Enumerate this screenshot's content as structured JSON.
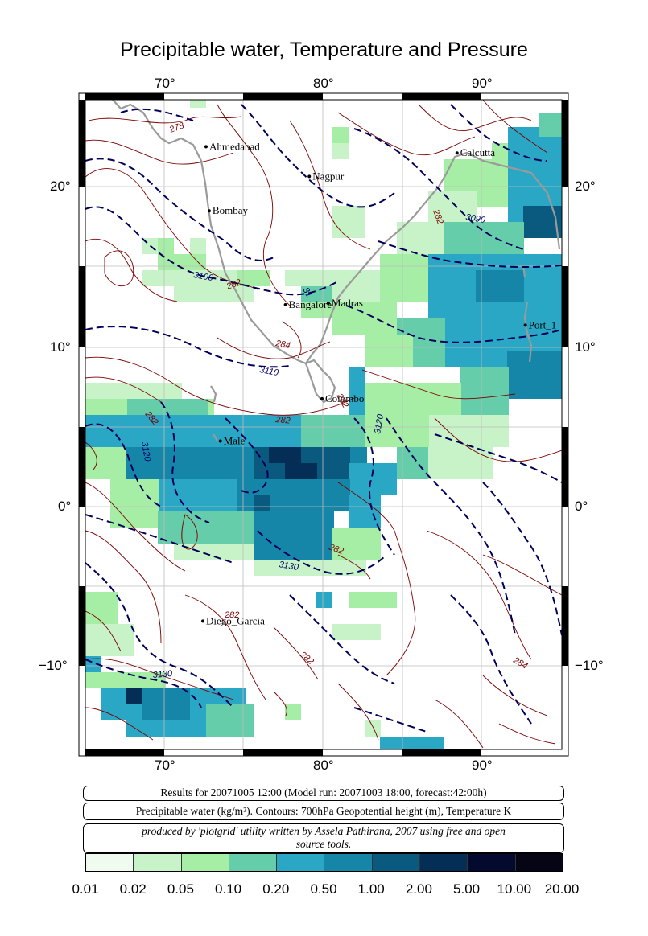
{
  "title": "Precipitable water, Temperature and Pressure",
  "axes": {
    "lon_ticks": [
      "70°",
      "80°",
      "90°"
    ],
    "lat_ticks": [
      "20°",
      "10°",
      "0°",
      "−10°"
    ],
    "lon_range": [
      65,
      95
    ],
    "lat_range": [
      -15.5,
      26
    ]
  },
  "cities": [
    {
      "name": "Ahmedabad",
      "lon": 72.6,
      "lat": 23.0
    },
    {
      "name": "Bombay",
      "lon": 72.8,
      "lat": 18.9
    },
    {
      "name": "Nagpur",
      "lon": 79.1,
      "lat": 21.1
    },
    {
      "name": "Calcutta",
      "lon": 88.4,
      "lat": 22.6
    },
    {
      "name": "Bangalore",
      "lon": 77.6,
      "lat": 12.9
    },
    {
      "name": "Madras",
      "lon": 80.3,
      "lat": 13.0
    },
    {
      "name": "Port_1",
      "lon": 92.7,
      "lat": 11.6
    },
    {
      "name": "Colombo",
      "lon": 79.9,
      "lat": 6.9
    },
    {
      "name": "Male",
      "lon": 73.5,
      "lat": 4.2
    },
    {
      "name": "Diego_Garcia",
      "lon": 72.4,
      "lat": -7.3
    }
  ],
  "contour_labels": {
    "temperature": [
      "278",
      "282",
      "284",
      "282",
      "282",
      "282",
      "282",
      "282",
      "282",
      "282",
      "284"
    ],
    "height": [
      "3100",
      "3110",
      "3090",
      "3120",
      "3120",
      "3130",
      "3130",
      "31"
    ]
  },
  "info": {
    "results": "Results for 20071005 12:00 (Model run: 20071003 18:00, forecast:42:00h)",
    "description": "Precipitable water (kg/m²).  Contours: 700hPa Geopotential height (m), Temperature K",
    "credit_line1": "produced by 'plotgrid' utility written by Assela Pathirana, 2007 using free and open",
    "credit_line2": "source tools."
  },
  "legend": {
    "labels": [
      "0.01",
      "0.02",
      "0.05",
      "0.10",
      "0.20",
      "0.50",
      "1.00",
      "2.00",
      "5.00",
      "10.00",
      "20.00"
    ],
    "colors": [
      "#f0fbf0",
      "#c8f3c8",
      "#a6eea6",
      "#66cdaa",
      "#2aa7c4",
      "#1585a8",
      "#0a5a80",
      "#052e56",
      "#030a2e",
      "#050516"
    ]
  },
  "colors": {
    "coast": "#9a9a9a",
    "temperature_contour": "#7a0000",
    "height_contour": "#00005a",
    "grid": "#bdbdbd"
  }
}
